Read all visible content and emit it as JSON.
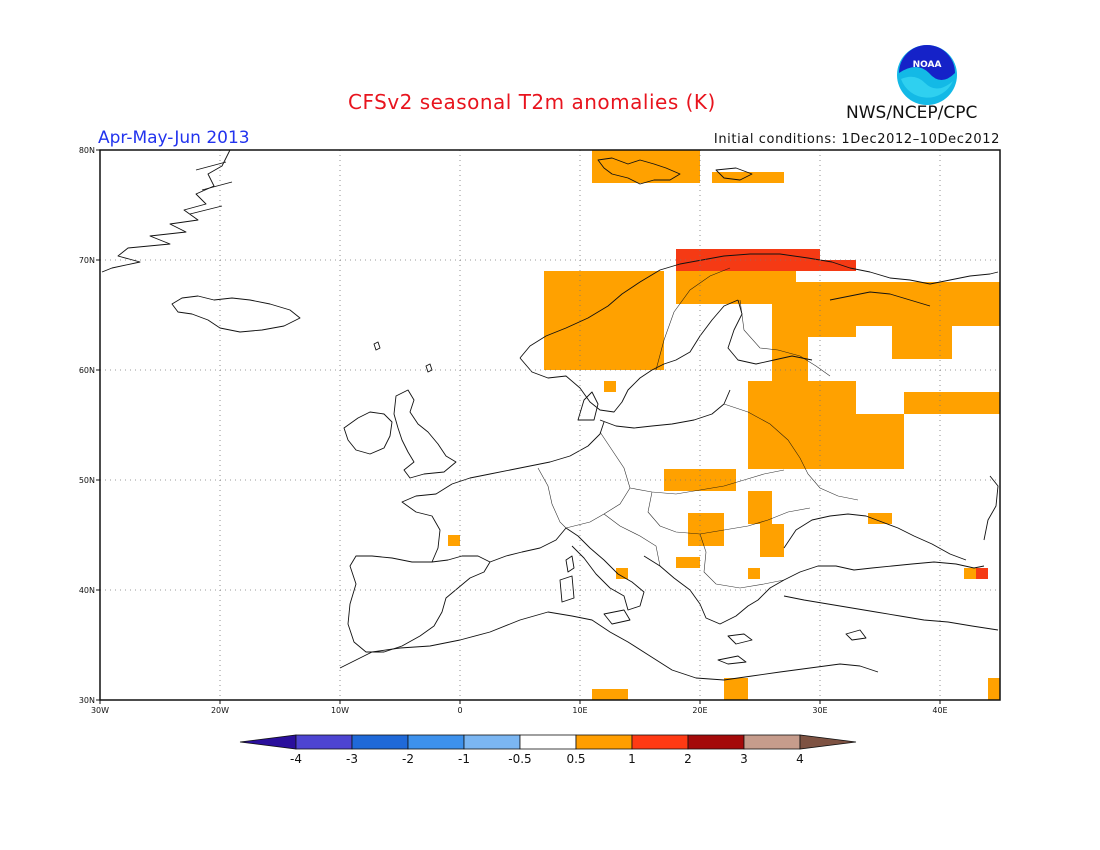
{
  "title": "CFSv2 seasonal T2m anomalies (K)",
  "period": "Apr-May-Jun 2013",
  "initial_conditions": "Initial conditions: 1Dec2012–10Dec2012",
  "agency": "NWS/NCEP/CPC",
  "logo_text": "NOAA",
  "map": {
    "lon_range": [
      -30,
      45
    ],
    "lat_range": [
      30,
      80
    ],
    "lon_ticks": [
      {
        "value": -30,
        "label": "30W"
      },
      {
        "value": -20,
        "label": "20W"
      },
      {
        "value": -10,
        "label": "10W"
      },
      {
        "value": 0,
        "label": "0"
      },
      {
        "value": 10,
        "label": "10E"
      },
      {
        "value": 20,
        "label": "20E"
      },
      {
        "value": 30,
        "label": "30E"
      },
      {
        "value": 40,
        "label": "40E"
      }
    ],
    "lat_ticks": [
      {
        "value": 30,
        "label": "30N"
      },
      {
        "value": 40,
        "label": "40N"
      },
      {
        "value": 50,
        "label": "50N"
      },
      {
        "value": 60,
        "label": "60N"
      },
      {
        "value": 70,
        "label": "70N"
      },
      {
        "value": 80,
        "label": "80N"
      }
    ],
    "anomaly_regions": [
      {
        "level": "0.5-1",
        "lon": [
          11,
          20
        ],
        "lat": [
          77,
          80
        ]
      },
      {
        "level": "0.5-1",
        "lon": [
          21,
          27
        ],
        "lat": [
          77,
          78
        ]
      },
      {
        "level": "0.5-1",
        "lon": [
          7,
          17
        ],
        "lat": [
          60,
          69
        ]
      },
      {
        "level": "0.5-1",
        "lon": [
          18,
          28
        ],
        "lat": [
          66,
          70
        ]
      },
      {
        "level": "0.5-1",
        "lon": [
          26,
          33
        ],
        "lat": [
          63,
          68
        ]
      },
      {
        "level": "0.5-1",
        "lon": [
          33,
          45
        ],
        "lat": [
          64,
          68
        ]
      },
      {
        "level": "0.5-1",
        "lon": [
          36,
          41
        ],
        "lat": [
          61,
          64
        ]
      },
      {
        "level": "0.5-1",
        "lon": [
          26,
          29
        ],
        "lat": [
          59,
          63
        ]
      },
      {
        "level": "0.5-1",
        "lon": [
          24,
          33
        ],
        "lat": [
          51,
          59
        ]
      },
      {
        "level": "0.5-1",
        "lon": [
          33,
          37
        ],
        "lat": [
          51,
          56
        ]
      },
      {
        "level": "0.5-1",
        "lon": [
          17,
          23
        ],
        "lat": [
          49,
          51
        ]
      },
      {
        "level": "0.5-1",
        "lon": [
          24,
          26
        ],
        "lat": [
          46,
          49
        ]
      },
      {
        "level": "0.5-1",
        "lon": [
          19,
          22
        ],
        "lat": [
          44,
          47
        ]
      },
      {
        "level": "0.5-1",
        "lon": [
          25,
          27
        ],
        "lat": [
          43,
          46
        ]
      },
      {
        "level": "0.5-1",
        "lon": [
          18,
          20
        ],
        "lat": [
          42,
          43
        ]
      },
      {
        "level": "0.5-1",
        "lon": [
          24,
          25
        ],
        "lat": [
          41,
          42
        ]
      },
      {
        "level": "0.5-1",
        "lon": [
          37,
          45
        ],
        "lat": [
          56,
          58
        ]
      },
      {
        "level": "0.5-1",
        "lon": [
          34,
          36
        ],
        "lat": [
          46,
          47
        ]
      },
      {
        "level": "0.5-1",
        "lon": [
          13,
          14
        ],
        "lat": [
          41,
          42
        ]
      },
      {
        "level": "0.5-1",
        "lon": [
          -1,
          0
        ],
        "lat": [
          44,
          45
        ]
      },
      {
        "level": "0.5-1",
        "lon": [
          11,
          14
        ],
        "lat": [
          30,
          31
        ]
      },
      {
        "level": "0.5-1",
        "lon": [
          22,
          24
        ],
        "lat": [
          30,
          32
        ]
      },
      {
        "level": "0.5-1",
        "lon": [
          44,
          45
        ],
        "lat": [
          30,
          32
        ]
      },
      {
        "level": "0.5-1",
        "lon": [
          12,
          13
        ],
        "lat": [
          58,
          59
        ]
      },
      {
        "level": "0.5-1",
        "lon": [
          42,
          43
        ],
        "lat": [
          41,
          42
        ]
      },
      {
        "level": "1-2",
        "lon": [
          18,
          30
        ],
        "lat": [
          69,
          71
        ]
      },
      {
        "level": "1-2",
        "lon": [
          29,
          33
        ],
        "lat": [
          69,
          70
        ]
      },
      {
        "level": "1-2",
        "lon": [
          43,
          44
        ],
        "lat": [
          41,
          42
        ]
      }
    ]
  },
  "colorbar": {
    "colors": [
      "#2a0f9c",
      "#4d44d1",
      "#1f69d8",
      "#3d91ec",
      "#7bb6f2",
      "#ffffff",
      "#ff9e00",
      "#ff3a14",
      "#a40a0a",
      "#c69c8c",
      "#7e5242"
    ],
    "labels": [
      "-4",
      "-3",
      "-2",
      "-1",
      "-0.5",
      "0.5",
      "1",
      "2",
      "3",
      "4"
    ],
    "level_colors": {
      "0.5-1": "#ffa100",
      "1-2": "#f53a14"
    }
  }
}
